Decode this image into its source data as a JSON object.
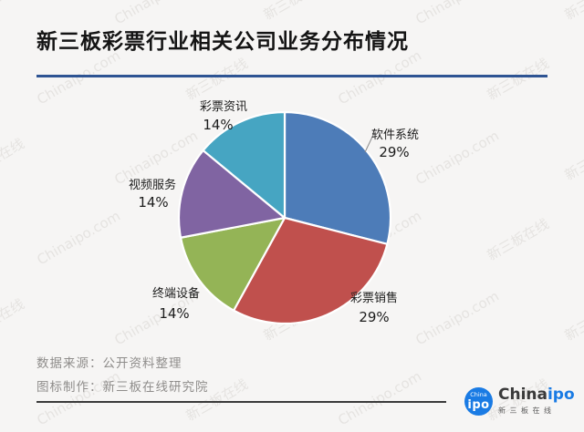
{
  "title": "新三板彩票行业相关公司业务分布情况",
  "chart_data": {
    "type": "pie",
    "title": "新三板彩票行业相关公司业务分布情况",
    "labels": [
      "软件系统",
      "彩票销售",
      "终端设备",
      "视频服务",
      "彩票资讯"
    ],
    "values": [
      29,
      29,
      14,
      14,
      14
    ],
    "percent_labels": [
      "29%",
      "29%",
      "14%",
      "14%",
      "14%"
    ],
    "colors": [
      "#4d7cb8",
      "#c0504d",
      "#94b456",
      "#8064a2",
      "#46a5c2"
    ],
    "start_angle_deg": 0,
    "direction": "clockwise",
    "legend": "none",
    "label_position": "outside",
    "slice_border_color": "#ffffff"
  },
  "footer": {
    "source_line": "数据来源：公开资料整理",
    "credit_line": "图标制作：新三板在线研究院"
  },
  "logo": {
    "badge_top": "China",
    "badge_main": "ipo",
    "brand_black": "China",
    "brand_blue": "ipo",
    "subtext": "新三板在线"
  },
  "watermark": {
    "text_a": "Chinaipo.com",
    "text_b": "新三板在线"
  },
  "accent_colors": {
    "title_rule": "#2e5493",
    "logo_blue": "#1a7be4",
    "footer_text": "#8f8d8b"
  }
}
